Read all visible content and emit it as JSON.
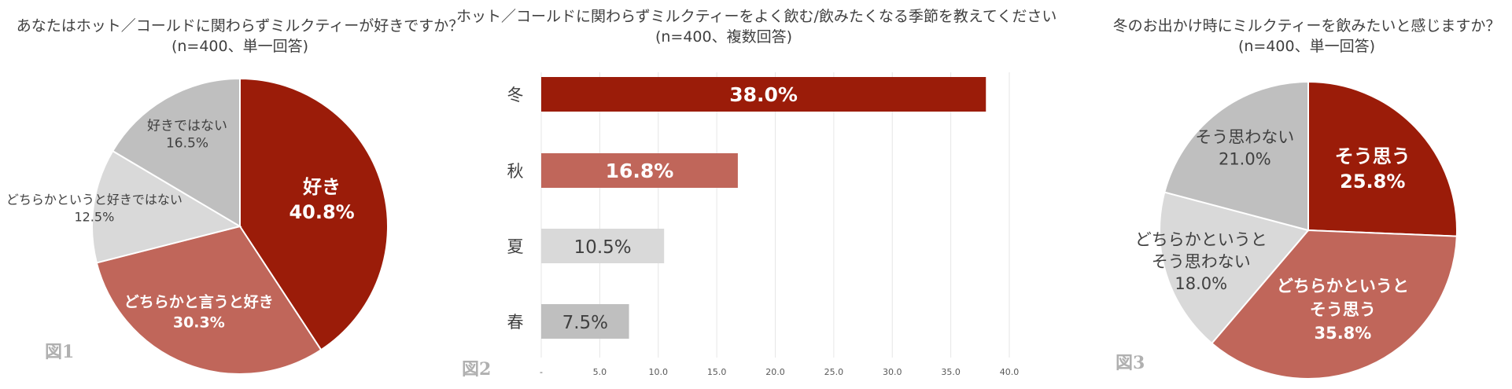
{
  "chart_data": [
    {
      "type": "pie",
      "figure_label": "図1",
      "title_line1": "あなたはホット／コールドに関わらずミルクティーが好きですか？",
      "title_line2": "(n=400、単一回答)",
      "slices": [
        {
          "label": "好き",
          "value": 40.8,
          "value_label": "40.8%",
          "color": "#9b1c09"
        },
        {
          "label": "どちらかと言うと好き",
          "value": 30.3,
          "value_label": "30.3%",
          "color": "#c0665a"
        },
        {
          "label": "どちらかというと好きではない",
          "value": 12.5,
          "value_label": "12.5%",
          "color": "#d9d9d9"
        },
        {
          "label": "好きではない",
          "value": 16.5,
          "value_label": "16.5%",
          "color": "#bfbfbf"
        }
      ]
    },
    {
      "type": "bar",
      "orientation": "horizontal",
      "figure_label": "図2",
      "title_line1": "ホット／コールドに関わらずミルクティーをよく飲む/飲みたくなる季節を教えてください",
      "title_line2": "(n=400、複数回答)",
      "categories": [
        "冬",
        "秋",
        "夏",
        "春"
      ],
      "values": [
        38.0,
        16.8,
        10.5,
        7.5
      ],
      "value_labels": [
        "38.0%",
        "16.8%",
        "10.5%",
        "7.5%"
      ],
      "colors": [
        "#9b1c09",
        "#c0665a",
        "#d9d9d9",
        "#bfbfbf"
      ],
      "xlim": [
        0,
        40
      ],
      "x_ticks": [
        "-",
        "5.0",
        "10.0",
        "15.0",
        "20.0",
        "25.0",
        "30.0",
        "35.0",
        "40.0"
      ],
      "grid": true
    },
    {
      "type": "pie",
      "figure_label": "図3",
      "title_line1": "冬のお出かけ時にミルクティーを飲みたいと感じますか？",
      "title_line2": "(n=400、単一回答)",
      "slices": [
        {
          "label": "そう思う",
          "value": 25.8,
          "value_label": "25.8%",
          "color": "#9b1c09"
        },
        {
          "label": "どちらかというと\nそう思う",
          "value": 35.8,
          "value_label": "35.8%",
          "color": "#c0665a"
        },
        {
          "label": "どちらかというと\nそう思わない",
          "value": 18.0,
          "value_label": "18.0%",
          "color": "#d9d9d9"
        },
        {
          "label": "そう思わない",
          "value": 21.0,
          "value_label": "21.0%",
          "color": "#bfbfbf"
        }
      ]
    }
  ]
}
